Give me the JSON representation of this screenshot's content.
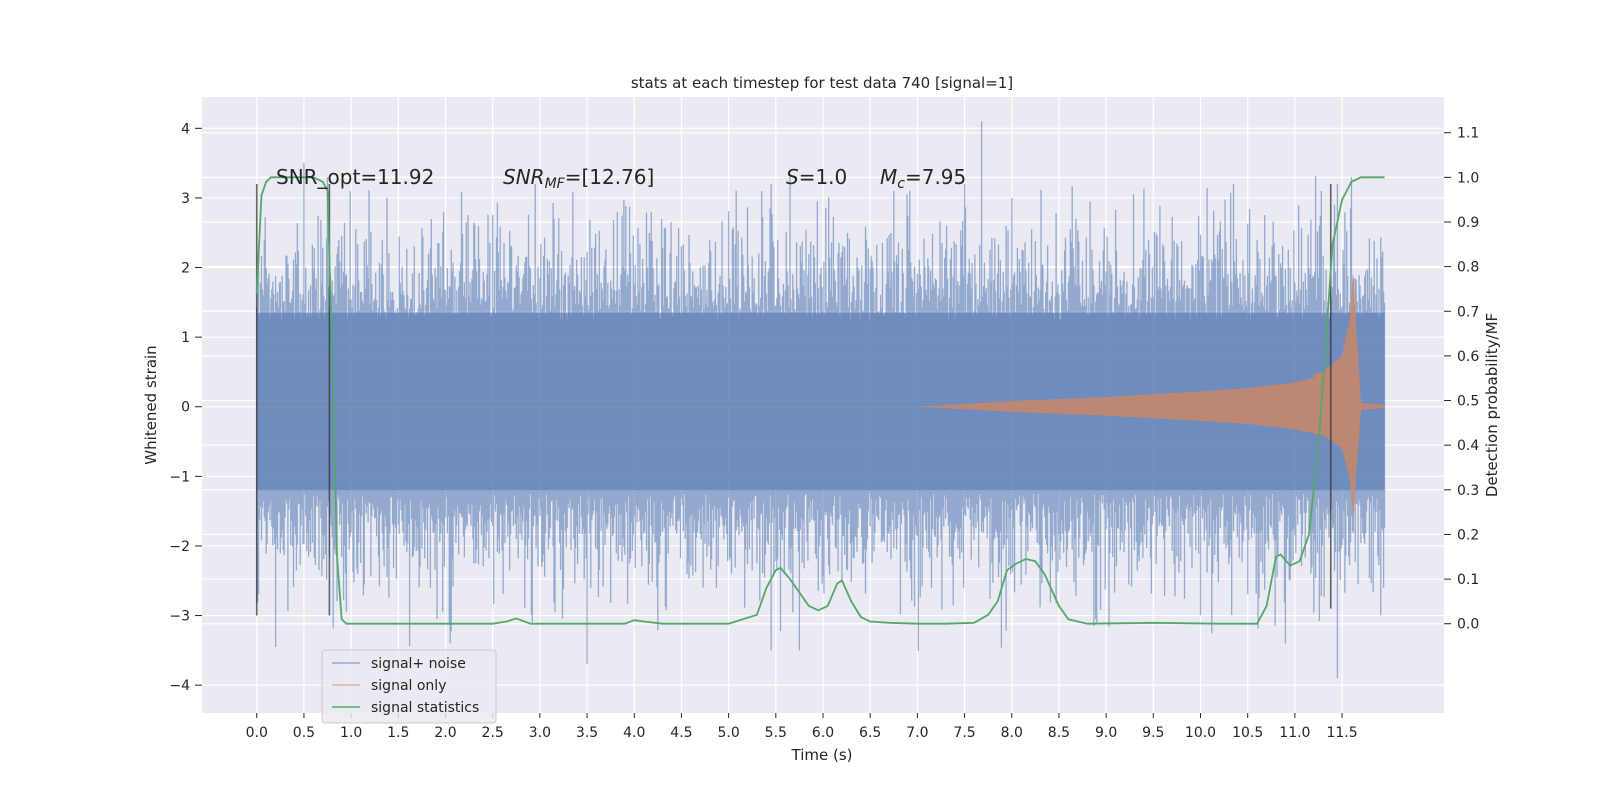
{
  "chart_data": {
    "type": "line",
    "title": "stats at each timestep for test data 740 [signal=1]",
    "xlabel": "Time (s)",
    "ylabel": "Whitened strain",
    "ylabel_right": "Detection probability/MF",
    "xlim": [
      -0.58,
      12.58
    ],
    "ylim": [
      -4.4,
      4.45
    ],
    "ylim_right": [
      -0.2,
      1.18
    ],
    "x_ticks": [
      "0.0",
      "0.5",
      "1.0",
      "1.5",
      "2.0",
      "2.5",
      "3.0",
      "3.5",
      "4.0",
      "4.5",
      "5.0",
      "5.5",
      "6.0",
      "6.5",
      "7.0",
      "7.5",
      "8.0",
      "8.5",
      "9.0",
      "9.5",
      "10.0",
      "10.5",
      "11.0",
      "11.5"
    ],
    "y_ticks": [
      "−4",
      "−3",
      "−2",
      "−1",
      "0",
      "1",
      "2",
      "3",
      "4"
    ],
    "y_ticks_right": [
      "0.0",
      "0.1",
      "0.2",
      "0.3",
      "0.4",
      "0.5",
      "0.6",
      "0.7",
      "0.8",
      "0.9",
      "1.0",
      "1.1"
    ],
    "grid": true,
    "legend_position": "lower-left",
    "annotations": {
      "snr_opt": "SNR_opt=11.92",
      "snr_mf_base": "SNR",
      "snr_mf_sub": "MF",
      "snr_mf_value": "=[12.76]",
      "s_var": "S",
      "s_value": "=1.0",
      "mc_base": "M",
      "mc_sub": "c",
      "mc_value": "=7.95"
    },
    "vlines": [
      {
        "x": 0.0,
        "ymin": -3.0,
        "ymax": 3.2
      },
      {
        "x": 0.77,
        "ymin": -3.0,
        "ymax": 3.2
      },
      {
        "x": 11.38,
        "ymin": -2.9,
        "ymax": 3.2
      }
    ],
    "series": [
      {
        "name": "signal+ noise",
        "color": "#4c72b0",
        "noise_envelope_sigma": 1.0,
        "t_range": [
          0.0,
          11.95
        ],
        "notable_peaks": [
          {
            "x": 0.5,
            "y": 3.5
          },
          {
            "x": 0.75,
            "y": 3.3
          },
          {
            "x": 1.38,
            "y": 3.0
          },
          {
            "x": 2.95,
            "y": 3.2
          },
          {
            "x": 5.35,
            "y": 3.1
          },
          {
            "x": 5.45,
            "y": 3.2
          },
          {
            "x": 6.75,
            "y": 3.1
          },
          {
            "x": 7.5,
            "y": 3.2
          },
          {
            "x": 7.68,
            "y": 4.1
          },
          {
            "x": 8.0,
            "y": 3.0
          },
          {
            "x": 10.35,
            "y": 3.2
          },
          {
            "x": 11.45,
            "y": 3.2
          },
          {
            "x": 11.6,
            "y": 3.3
          },
          {
            "x": 0.2,
            "y": -3.45
          },
          {
            "x": 2.05,
            "y": -3.4
          },
          {
            "x": 3.5,
            "y": -3.7
          },
          {
            "x": 5.45,
            "y": -3.5
          },
          {
            "x": 5.75,
            "y": -3.5
          },
          {
            "x": 11.45,
            "y": -3.9
          },
          {
            "x": 10.9,
            "y": -3.4
          }
        ]
      },
      {
        "name": "signal only",
        "color": "#dd8452",
        "envelope": {
          "x": [
            7.0,
            8.0,
            9.0,
            10.0,
            10.5,
            11.0,
            11.3,
            11.5,
            11.58,
            11.62,
            11.65,
            11.7,
            11.95
          ],
          "amp": [
            0.0,
            0.08,
            0.14,
            0.22,
            0.27,
            0.35,
            0.45,
            0.65,
            1.1,
            1.75,
            1.0,
            0.05,
            0.02
          ]
        }
      },
      {
        "name": "signal statistics",
        "color": "#55a868",
        "axis": "right",
        "x": [
          0.0,
          0.05,
          0.1,
          0.15,
          0.2,
          0.3,
          0.5,
          0.6,
          0.7,
          0.75,
          0.8,
          0.85,
          0.9,
          0.95,
          1.0,
          1.1,
          2.0,
          2.5,
          2.65,
          2.75,
          2.9,
          3.5,
          3.9,
          4.0,
          4.1,
          4.3,
          5.0,
          5.3,
          5.4,
          5.5,
          5.55,
          5.65,
          5.75,
          5.85,
          5.95,
          6.05,
          6.15,
          6.2,
          6.3,
          6.4,
          6.5,
          6.7,
          7.0,
          7.3,
          7.6,
          7.75,
          7.85,
          7.95,
          8.05,
          8.15,
          8.25,
          8.35,
          8.5,
          8.6,
          8.8,
          9.5,
          10.2,
          10.5,
          10.6,
          10.7,
          10.8,
          10.85,
          10.95,
          11.05,
          11.15,
          11.25,
          11.35,
          11.4,
          11.5,
          11.6,
          11.7,
          11.8,
          11.95
        ],
        "y": [
          0.74,
          0.96,
          0.99,
          1.0,
          1.0,
          1.0,
          1.0,
          1.0,
          0.99,
          0.97,
          0.6,
          0.15,
          0.01,
          0.0,
          0.0,
          0.0,
          0.0,
          0.0,
          0.005,
          0.012,
          0.0,
          0.0,
          0.0,
          0.008,
          0.005,
          0.0,
          0.0,
          0.02,
          0.08,
          0.12,
          0.125,
          0.1,
          0.07,
          0.04,
          0.03,
          0.04,
          0.09,
          0.097,
          0.05,
          0.015,
          0.005,
          0.002,
          0.0,
          0.0,
          0.002,
          0.02,
          0.05,
          0.12,
          0.135,
          0.145,
          0.14,
          0.11,
          0.04,
          0.01,
          0.0,
          0.002,
          0.0,
          0.0,
          0.0,
          0.04,
          0.15,
          0.155,
          0.13,
          0.14,
          0.2,
          0.4,
          0.7,
          0.85,
          0.95,
          0.99,
          1.0,
          1.0,
          1.0
        ]
      }
    ]
  }
}
